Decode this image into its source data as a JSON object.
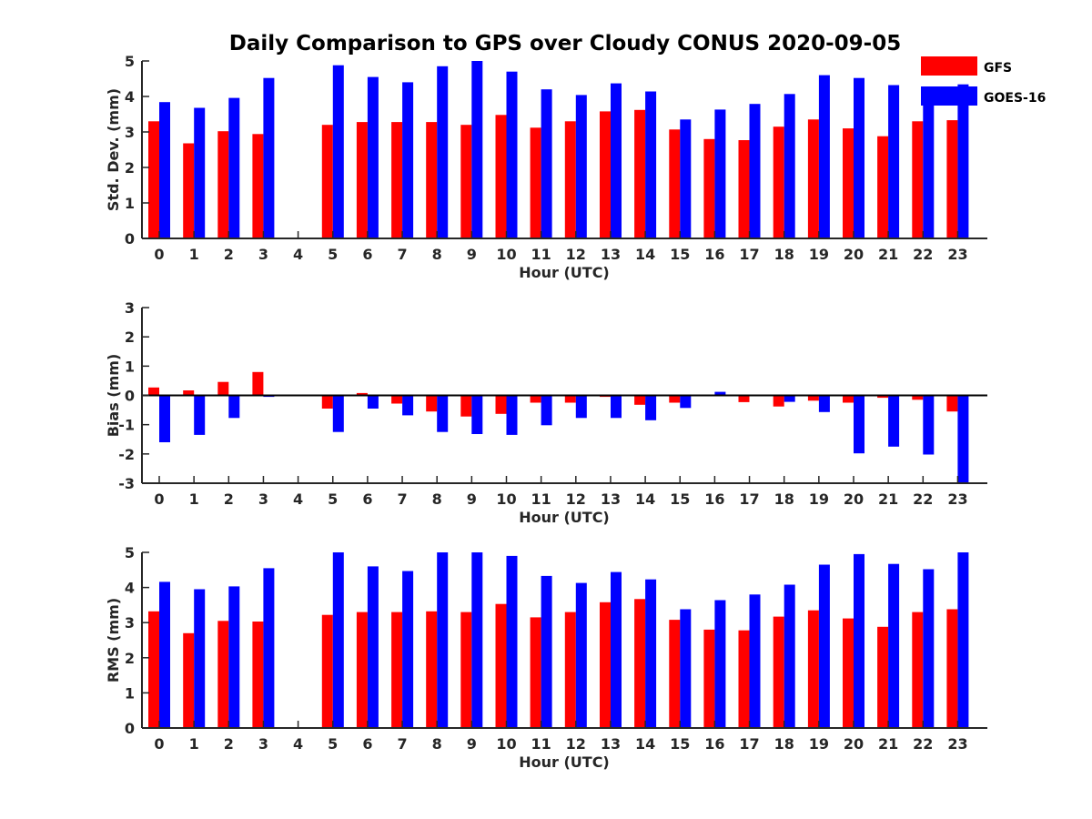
{
  "title": "Daily Comparison to GPS over Cloudy CONUS 2020-09-05",
  "legend": {
    "placement": "top-right",
    "entries": [
      {
        "name": "GFS",
        "color": "#ff0000"
      },
      {
        "name": "GOES-16",
        "color": "#0000ff"
      }
    ]
  },
  "chart_data": [
    {
      "type": "bar",
      "xlabel": "Hour (UTC)",
      "ylabel": "Std. Dev. (mm)",
      "ylim": [
        0,
        5
      ],
      "yticks": [
        0,
        1,
        2,
        3,
        4,
        5
      ],
      "categories": [
        "0",
        "1",
        "2",
        "3",
        "4",
        "5",
        "6",
        "7",
        "8",
        "9",
        "10",
        "11",
        "12",
        "13",
        "14",
        "15",
        "16",
        "17",
        "18",
        "19",
        "20",
        "21",
        "22",
        "23"
      ],
      "series": [
        {
          "name": "GFS",
          "color": "#ff0000",
          "values": [
            3.3,
            2.68,
            3.02,
            2.94,
            null,
            3.2,
            3.28,
            3.28,
            3.28,
            3.2,
            3.48,
            3.12,
            3.3,
            3.58,
            3.62,
            3.07,
            2.8,
            2.77,
            3.15,
            3.35,
            3.1,
            2.88,
            3.3,
            3.33
          ]
        },
        {
          "name": "GOES-16",
          "color": "#0000ff",
          "values": [
            3.84,
            3.68,
            3.96,
            4.52,
            null,
            4.88,
            4.55,
            4.4,
            4.85,
            5.0,
            4.7,
            4.2,
            4.04,
            4.37,
            4.14,
            3.35,
            3.63,
            3.79,
            4.07,
            4.6,
            4.52,
            4.32,
            4.01,
            4.34
          ]
        }
      ]
    },
    {
      "type": "bar",
      "xlabel": "Hour (UTC)",
      "ylabel": "Bias (mm)",
      "ylim": [
        -3,
        3
      ],
      "yticks": [
        -3,
        -2,
        -1,
        0,
        1,
        2,
        3
      ],
      "zero_line": true,
      "categories": [
        "0",
        "1",
        "2",
        "3",
        "4",
        "5",
        "6",
        "7",
        "8",
        "9",
        "10",
        "11",
        "12",
        "13",
        "14",
        "15",
        "16",
        "17",
        "18",
        "19",
        "20",
        "21",
        "22",
        "23"
      ],
      "series": [
        {
          "name": "GFS",
          "color": "#ff0000",
          "values": [
            0.27,
            0.17,
            0.46,
            0.8,
            null,
            -0.45,
            0.08,
            -0.28,
            -0.55,
            -0.72,
            -0.63,
            -0.25,
            -0.25,
            -0.05,
            -0.32,
            -0.25,
            0.02,
            -0.23,
            -0.38,
            -0.18,
            -0.25,
            -0.08,
            -0.15,
            -0.55
          ]
        },
        {
          "name": "GOES-16",
          "color": "#0000ff",
          "values": [
            -1.6,
            -1.35,
            -0.77,
            -0.05,
            null,
            -1.25,
            -0.45,
            -0.68,
            -1.25,
            -1.32,
            -1.35,
            -1.02,
            -0.77,
            -0.77,
            -0.85,
            -0.43,
            0.12,
            0.0,
            -0.22,
            -0.57,
            -1.98,
            -1.75,
            -2.02,
            -3.0
          ]
        }
      ]
    },
    {
      "type": "bar",
      "xlabel": "Hour (UTC)",
      "ylabel": "RMS (mm)",
      "ylim": [
        0,
        5
      ],
      "yticks": [
        0,
        1,
        2,
        3,
        4,
        5
      ],
      "categories": [
        "0",
        "1",
        "2",
        "3",
        "4",
        "5",
        "6",
        "7",
        "8",
        "9",
        "10",
        "11",
        "12",
        "13",
        "14",
        "15",
        "16",
        "17",
        "18",
        "19",
        "20",
        "21",
        "22",
        "23"
      ],
      "series": [
        {
          "name": "GFS",
          "color": "#ff0000",
          "values": [
            3.32,
            2.7,
            3.05,
            3.03,
            null,
            3.22,
            3.3,
            3.3,
            3.32,
            3.3,
            3.53,
            3.15,
            3.3,
            3.58,
            3.67,
            3.08,
            2.8,
            2.78,
            3.17,
            3.35,
            3.12,
            2.88,
            3.3,
            3.38
          ]
        },
        {
          "name": "GOES-16",
          "color": "#0000ff",
          "values": [
            4.16,
            3.95,
            4.03,
            4.55,
            null,
            5.0,
            4.6,
            4.47,
            5.0,
            5.0,
            4.9,
            4.33,
            4.13,
            4.44,
            4.23,
            3.38,
            3.64,
            3.8,
            4.08,
            4.65,
            4.95,
            4.67,
            4.52,
            5.0
          ]
        }
      ]
    }
  ]
}
